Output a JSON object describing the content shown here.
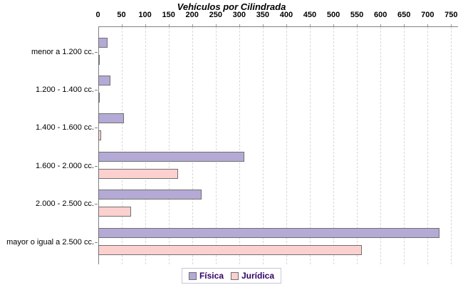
{
  "chart_data": {
    "type": "bar",
    "orientation": "horizontal",
    "title": "Vehículos por Cilindrada",
    "xlabel": "",
    "ylabel": "",
    "categories": [
      "menor a 1.200 cc.",
      "1.200 - 1.400 cc.",
      "1.400 - 1.600 cc.",
      "1.600 - 2.000 cc.",
      "2.000 - 2.500 cc.",
      "mayor o igual a 2.500 cc."
    ],
    "series": [
      {
        "name": "Física",
        "color": "#b4aad5",
        "values": [
          20,
          25,
          55,
          310,
          220,
          725
        ]
      },
      {
        "name": "Jurídica",
        "color": "#fdd0d0",
        "values": [
          3,
          2,
          6,
          170,
          70,
          560
        ]
      }
    ],
    "xlim": [
      0,
      750
    ],
    "x_ticks": [
      0,
      50,
      100,
      150,
      200,
      250,
      300,
      350,
      400,
      450,
      500,
      550,
      600,
      650,
      700,
      750
    ],
    "grid": true,
    "legend_position": "bottom"
  },
  "colors": {
    "axis": "#808080",
    "grid": "#d8d8d8",
    "bar_border": "#707070",
    "title_text": "#000000",
    "legend_text": "#330066",
    "legend_border": "#c6c6d6",
    "background": "#ffffff"
  }
}
